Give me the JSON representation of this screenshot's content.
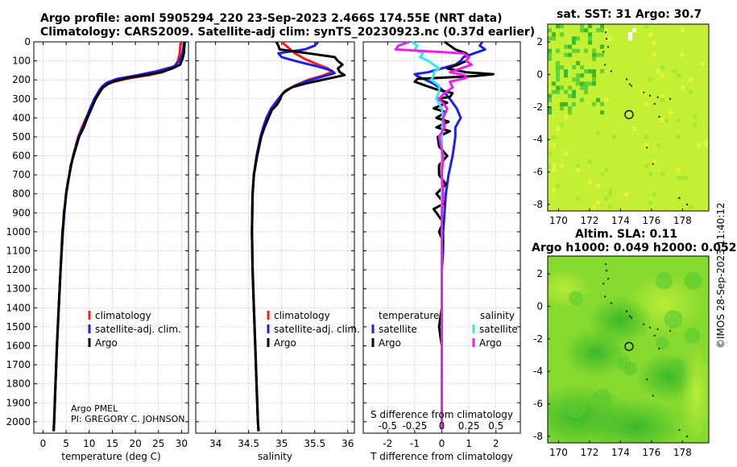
{
  "title_line1": "Argo profile: aoml 5905294_220 23-Sep-2023 2.466S 174.55E (NRT data)",
  "title_line2": "Climatology: CARS2009. Satellite-adj clim: synTS_20230923.nc (0.37d earlier)",
  "sst_title": "sat. SST: 31 Argo: 30.7",
  "sla_title1": "Altim. SLA: 0.11",
  "sla_title2": "Argo h1000: 0.049 h2000: 0.052",
  "credit": "Argo PMEL",
  "pi": "PI: GREGORY C. JOHNSON",
  "timestamp": "©IMOS 28-Sep-2023 11:40:12",
  "colors": {
    "red": "#ff1a1a",
    "blue": "#1f1fe6",
    "black": "#000000",
    "cyan": "#33e6f0",
    "magenta": "#ee1fee",
    "grid": "#b4b4b4",
    "sstbg": "#c4f034",
    "slabg": "#86d92e"
  },
  "chart_data": [
    {
      "type": "line",
      "id": "temperature",
      "xlabel": "temperature (deg C)",
      "ylabel": "",
      "xlim": [
        -2,
        31.5
      ],
      "ylim": [
        2060,
        0
      ],
      "xticks": [
        0,
        5,
        10,
        15,
        20,
        25,
        30
      ],
      "xtick_labels": [
        "0",
        "5",
        "10",
        "15",
        "20",
        "25",
        "30"
      ],
      "yticks": [
        0,
        100,
        200,
        300,
        400,
        500,
        600,
        700,
        800,
        900,
        1000,
        1100,
        1200,
        1300,
        1400,
        1500,
        1600,
        1700,
        1800,
        1900,
        2000
      ],
      "ytick_labels": [
        "0",
        "100",
        "200",
        "300",
        "400",
        "500",
        "600",
        "700",
        "800",
        "900",
        "1000",
        "1100",
        "1200",
        "1300",
        "1400",
        "1500",
        "1600",
        "1700",
        "1800",
        "1900",
        "2000"
      ],
      "legend": [
        "climatology",
        "satellite-adj. clim.",
        "Argo"
      ],
      "series": [
        {
          "name": "climatology",
          "color": "red",
          "depth": [
            0,
            30,
            60,
            100,
            130,
            160,
            175,
            190,
            210,
            230,
            250,
            300,
            350,
            400,
            450,
            500,
            600,
            700,
            800,
            900,
            1000,
            1200,
            1400,
            1600,
            1800,
            2000,
            2050
          ],
          "values": [
            29.8,
            29.7,
            29.6,
            29.2,
            28.5,
            25.8,
            23.0,
            19.0,
            15.3,
            13.2,
            12.3,
            11.2,
            10.4,
            9.3,
            8.4,
            7.6,
            6.5,
            5.7,
            5.0,
            4.6,
            4.3,
            3.8,
            3.4,
            3.0,
            2.7,
            2.4,
            2.3
          ]
        },
        {
          "name": "satellite-adj. clim.",
          "color": "blue",
          "depth": [
            0,
            30,
            60,
            100,
            130,
            155,
            175,
            195,
            215,
            235,
            260,
            300,
            350,
            400,
            450,
            500,
            600,
            700,
            800,
            900,
            1000,
            1200,
            1400,
            1600,
            1800,
            2000,
            2050
          ],
          "values": [
            30.5,
            30.4,
            30.2,
            29.6,
            28.3,
            24.5,
            20.5,
            16.0,
            13.8,
            12.8,
            12.1,
            11.1,
            10.2,
            9.4,
            8.6,
            7.7,
            6.5,
            5.7,
            5.0,
            4.6,
            4.3,
            3.8,
            3.4,
            3.0,
            2.7,
            2.4,
            2.3
          ]
        },
        {
          "name": "Argo",
          "color": "black",
          "depth": [
            0,
            30,
            60,
            90,
            120,
            140,
            160,
            175,
            190,
            205,
            220,
            240,
            260,
            300,
            350,
            400,
            450,
            500,
            550,
            600,
            650,
            700,
            750,
            800,
            850,
            900,
            950,
            1000,
            1200,
            1400,
            1600,
            1800,
            2000,
            2050
          ],
          "values": [
            30.7,
            30.6,
            30.5,
            30.2,
            29.7,
            28.0,
            25.6,
            22.0,
            18.4,
            15.7,
            14.2,
            13.0,
            12.4,
            11.4,
            10.5,
            9.6,
            8.8,
            7.8,
            7.2,
            6.6,
            6.0,
            5.7,
            5.3,
            5.0,
            4.8,
            4.5,
            4.4,
            4.2,
            3.8,
            3.4,
            3.0,
            2.7,
            2.4,
            2.3
          ]
        }
      ]
    },
    {
      "type": "line",
      "id": "salinity",
      "xlabel": "salinity",
      "ylabel": "",
      "xlim": [
        33.7,
        36.1
      ],
      "ylim": [
        2060,
        0
      ],
      "xticks": [
        34,
        34.5,
        35,
        35.5,
        36
      ],
      "xtick_labels": [
        "34",
        "34.5",
        "35",
        "35.5",
        "36"
      ],
      "legend": [
        "climatology",
        "satellite-adj. clim.",
        "Argo"
      ],
      "series": [
        {
          "name": "climatology",
          "color": "red",
          "depth": [
            0,
            30,
            60,
            90,
            120,
            140,
            160,
            180,
            200,
            230,
            260,
            300,
            350,
            400,
            450,
            500,
            600,
            700,
            800,
            1000,
            1200,
            1400,
            1600,
            1800,
            2000,
            2050
          ],
          "values": [
            35.0,
            35.1,
            35.2,
            35.35,
            35.55,
            35.7,
            35.75,
            35.6,
            35.4,
            35.2,
            35.05,
            34.95,
            34.85,
            34.78,
            34.73,
            34.69,
            34.62,
            34.58,
            34.56,
            34.55,
            34.56,
            34.58,
            34.6,
            34.62,
            34.64,
            34.65
          ]
        },
        {
          "name": "satellite-adj. clim.",
          "color": "blue",
          "depth": [
            0,
            20,
            40,
            60,
            80,
            100,
            130,
            150,
            165,
            185,
            210,
            240,
            270,
            300,
            350,
            400,
            450,
            500,
            600,
            700,
            800,
            1000,
            1200,
            1400,
            1600,
            1800,
            2000,
            2050
          ],
          "values": [
            35.55,
            35.5,
            35.35,
            34.95,
            35.0,
            35.2,
            35.55,
            35.75,
            35.8,
            35.6,
            35.35,
            35.15,
            35.02,
            34.95,
            34.84,
            34.77,
            34.72,
            34.68,
            34.62,
            34.58,
            34.56,
            34.55,
            34.56,
            34.58,
            34.6,
            34.62,
            34.64,
            34.65
          ]
        },
        {
          "name": "Argo",
          "color": "black",
          "depth": [
            0,
            20,
            40,
            60,
            80,
            100,
            120,
            140,
            160,
            175,
            190,
            205,
            220,
            240,
            260,
            280,
            300,
            330,
            360,
            400,
            450,
            500,
            600,
            700,
            800,
            1000,
            1200,
            1400,
            1600,
            1800,
            2000,
            2050
          ],
          "values": [
            34.92,
            34.95,
            34.97,
            35.4,
            35.8,
            35.85,
            35.92,
            35.85,
            35.88,
            35.95,
            35.75,
            35.55,
            35.35,
            35.15,
            35.05,
            35.0,
            34.98,
            34.93,
            34.85,
            34.8,
            34.74,
            34.69,
            34.63,
            34.58,
            34.56,
            34.55,
            34.56,
            34.58,
            34.6,
            34.62,
            34.64,
            34.65
          ]
        }
      ]
    },
    {
      "type": "line",
      "id": "differences",
      "xlabel": "T difference from climatology",
      "x2label": "S difference from climatology",
      "xlim": [
        -2.9,
        2.9
      ],
      "ylim": [
        2060,
        0
      ],
      "xticks": [
        -2,
        -1,
        0,
        1,
        2
      ],
      "xtick_labels": [
        "-2",
        "-1",
        "0",
        "1",
        "2"
      ],
      "x2tick_labels": [
        "-0.5",
        "-0.25",
        "0",
        "0.25",
        "0.5"
      ],
      "legend_headers": [
        "temperature",
        "salinity"
      ],
      "legend": [
        "satellite",
        "Argo",
        "satellite",
        "Argo"
      ],
      "series": [
        {
          "name": "temperature satellite",
          "color": "blue",
          "depth": [
            0,
            20,
            40,
            60,
            80,
            100,
            120,
            140,
            160,
            170,
            180,
            200,
            220,
            250,
            300,
            350,
            400,
            450,
            500,
            600,
            700,
            800,
            900,
            1000,
            1100,
            1200,
            1400,
            1600,
            1800,
            2000,
            2040
          ],
          "values": [
            1.5,
            1.4,
            1.6,
            1.2,
            0.8,
            0.7,
            0.5,
            0.0,
            -0.5,
            -1.0,
            -0.9,
            -0.6,
            -0.3,
            0.0,
            0.3,
            0.55,
            0.7,
            0.5,
            0.5,
            0.4,
            0.25,
            0.15,
            0.1,
            0.05,
            0.05,
            0.0,
            0.0,
            0.0,
            0.0,
            0.0,
            0.0
          ]
        },
        {
          "name": "temperature Argo",
          "color": "black",
          "depth": [
            0,
            20,
            40,
            60,
            80,
            100,
            120,
            140,
            160,
            170,
            180,
            195,
            210,
            230,
            250,
            270,
            290,
            300,
            320,
            350,
            370,
            400,
            420,
            450,
            470,
            500,
            550,
            600,
            650,
            700,
            750,
            800,
            850,
            880,
            900,
            950,
            1000,
            1050,
            1100,
            1200,
            1300,
            1400,
            1500,
            1600,
            1700,
            1800,
            1900,
            2000,
            2040
          ],
          "values": [
            0.1,
            0.3,
            0.5,
            0.9,
            1.0,
            0.9,
            0.6,
            0.2,
            0.9,
            1.9,
            1.2,
            -0.9,
            -1.0,
            -0.6,
            -0.2,
            0.4,
            0.3,
            -0.2,
            0.2,
            -0.3,
            0.15,
            -0.2,
            0.25,
            -0.2,
            0.3,
            -0.15,
            -0.1,
            0.2,
            -0.1,
            -0.1,
            0.15,
            -0.2,
            0.1,
            -0.3,
            -0.2,
            0.05,
            -0.1,
            0.05,
            0.0,
            0.0,
            0.0,
            0.0,
            -0.1,
            0.0,
            0.0,
            0.0,
            0.0,
            0.0,
            0.0
          ]
        },
        {
          "name": "salinity satellite",
          "color": "cyan",
          "depth": [
            0,
            20,
            40,
            60,
            80,
            100,
            120,
            140,
            160,
            180,
            200,
            230,
            260,
            300,
            350,
            400,
            500,
            600,
            800,
            1000,
            1200,
            1600,
            2040
          ],
          "values": [
            -1.1,
            -0.9,
            -1.0,
            -0.7,
            -0.8,
            -0.5,
            -0.3,
            -0.1,
            -0.3,
            -0.3,
            -0.4,
            -0.1,
            -0.1,
            -0.2,
            0.0,
            0.05,
            0.0,
            0.0,
            0.0,
            0.0,
            0.0,
            0.0,
            0.0
          ]
        },
        {
          "name": "salinity Argo",
          "color": "magenta",
          "depth": [
            0,
            20,
            40,
            60,
            80,
            100,
            120,
            140,
            160,
            175,
            190,
            210,
            240,
            270,
            300,
            350,
            400,
            450,
            500,
            600,
            700,
            800,
            900,
            1000,
            1200,
            1400,
            1600,
            1800,
            2000,
            2040
          ],
          "values": [
            -1.2,
            -1.6,
            -1.7,
            0.8,
            1.0,
            0.9,
            1.1,
            0.7,
            0.3,
            0.85,
            0.9,
            0.3,
            0.4,
            0.1,
            -0.1,
            0.2,
            0.05,
            0.1,
            -0.1,
            0.05,
            0.0,
            0.05,
            0.0,
            0.0,
            0.0,
            0.0,
            0.0,
            0.0,
            0.0,
            0.0
          ]
        }
      ]
    },
    {
      "type": "heatmap",
      "id": "sst_map",
      "title": "sat. SST: 31 Argo: 30.7",
      "xlim": [
        169.3,
        179.7
      ],
      "ylim": [
        -8.4,
        3.1
      ],
      "xticks": [
        170,
        172,
        174,
        176,
        178
      ],
      "xtick_labels": [
        "170",
        "172",
        "174",
        "176",
        "178"
      ],
      "yticks": [
        2,
        0,
        -2,
        -4,
        -6,
        -8
      ],
      "ytick_labels": [
        "2",
        "0",
        "-2",
        "-4",
        "-6",
        "-8"
      ],
      "argo_position": {
        "lon": 174.55,
        "lat": -2.466
      }
    },
    {
      "type": "heatmap",
      "id": "sla_map",
      "title": "Altim. SLA: 0.11",
      "xlim": [
        169.3,
        179.7
      ],
      "ylim": [
        -8.4,
        3.1
      ],
      "xticks": [
        170,
        172,
        174,
        176,
        178
      ],
      "xtick_labels": [
        "170",
        "172",
        "174",
        "176",
        "178"
      ],
      "yticks": [
        2,
        0,
        -2,
        -4,
        -6,
        -8
      ],
      "ytick_labels": [
        "2",
        "0",
        "-2",
        "-4",
        "-6",
        "-8"
      ],
      "argo_position": {
        "lon": 174.55,
        "lat": -2.466
      }
    }
  ]
}
